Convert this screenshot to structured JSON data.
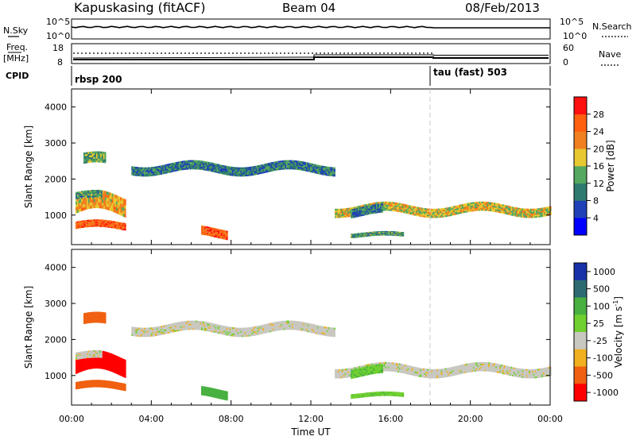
{
  "header": {
    "station": "Kapuskasing (fitACF)",
    "beam": "Beam 04",
    "date": "08/Feb/2013"
  },
  "top_panel": {
    "left_label": "N.Sky",
    "right_label": "N.Search",
    "left_ticks": [
      "10^5",
      "10^0"
    ],
    "right_ticks": [
      "10^5",
      "10^0"
    ]
  },
  "freq_panel": {
    "left_label_1": "Freq.",
    "left_label_2": "[MHz]",
    "right_label": "Nave",
    "left_ticks": [
      "18",
      "8"
    ],
    "right_ticks": [
      "60",
      "0"
    ]
  },
  "cpid_panel": {
    "label": "CPID",
    "modes": [
      "rbsp 200",
      "tau (fast) 503"
    ]
  },
  "colors": {
    "scale": [
      "#0000ff",
      "#2040b8",
      "#2e7a70",
      "#55a860",
      "#e8c830",
      "#f08020",
      "#ff6010",
      "#ff1010"
    ],
    "ground_scatter": "#c8c8c0"
  },
  "power_colorbar": {
    "title": "Power [dB]",
    "ticks": [
      "4",
      "8",
      "12",
      "16",
      "20",
      "24",
      "28"
    ]
  },
  "velocity_colorbar": {
    "title_prefix": "Velocity [m s",
    "title_exp": "-1",
    "title_suffix": "]",
    "ticks": [
      "1000",
      "500",
      "100",
      "25",
      "-25",
      "-100",
      "-500",
      "-1000"
    ]
  },
  "chart_data": {
    "type": "heatmap",
    "xlabel": "Time UT",
    "ylabel": "Slant Range [km]",
    "x_ticks": [
      "00:00",
      "04:00",
      "08:00",
      "12:00",
      "16:00",
      "20:00",
      "00:00"
    ],
    "y_ticks": [
      "1000",
      "2000",
      "3000",
      "4000"
    ],
    "xlim_hours": [
      0,
      24
    ],
    "ylim_km": [
      180,
      4500
    ],
    "mode_change_hour": 18,
    "panels": [
      "Power [dB]",
      "Velocity [m s^-1]"
    ],
    "echo_bands_range_km": [
      {
        "from_h": 0.2,
        "to_h": 2.7,
        "center_km": 700,
        "width_km": 200,
        "power": 26,
        "velocity": -300
      },
      {
        "from_h": 0.2,
        "to_h": 2.7,
        "center_km": 1250,
        "width_km": 500,
        "power": 20,
        "velocity": -800
      },
      {
        "from_h": 0.2,
        "to_h": 1.5,
        "center_km": 1520,
        "width_km": 200,
        "power": 12,
        "velocity": 0
      },
      {
        "from_h": 0.6,
        "to_h": 1.7,
        "center_km": 2500,
        "width_km": 300,
        "power": 14,
        "velocity": -200
      },
      {
        "from_h": 3.0,
        "to_h": 13.2,
        "center_km": 2300,
        "width_km": 250,
        "power": 10,
        "velocity": 0
      },
      {
        "from_h": 6.5,
        "to_h": 7.8,
        "center_km": 500,
        "width_km": 250,
        "power": 26,
        "velocity": 150
      },
      {
        "from_h": 13.2,
        "to_h": 24.0,
        "center_km": 1150,
        "width_km": 250,
        "power": 18,
        "velocity": 0
      },
      {
        "from_h": 14.0,
        "to_h": 16.6,
        "center_km": 450,
        "width_km": 120,
        "power": 12,
        "velocity": 80
      },
      {
        "from_h": 14.0,
        "to_h": 15.6,
        "center_km": 1100,
        "width_km": 250,
        "power": 10,
        "velocity": 90
      }
    ]
  }
}
